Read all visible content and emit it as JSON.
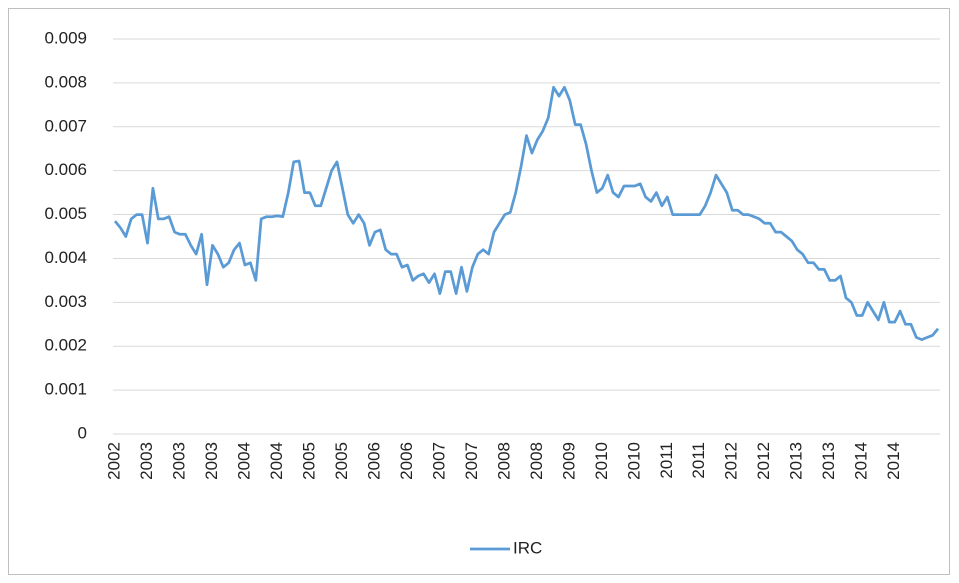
{
  "chart_data": {
    "type": "line",
    "categories": [
      "2002",
      null,
      null,
      null,
      null,
      null,
      "2003",
      null,
      null,
      null,
      null,
      null,
      "2003",
      null,
      null,
      null,
      null,
      null,
      "2003",
      null,
      null,
      null,
      null,
      null,
      "2004",
      null,
      null,
      null,
      null,
      null,
      "2004",
      null,
      null,
      null,
      null,
      null,
      "2005",
      null,
      null,
      null,
      null,
      null,
      "2005",
      null,
      null,
      null,
      null,
      null,
      "2006",
      null,
      null,
      null,
      null,
      null,
      "2006",
      null,
      null,
      null,
      null,
      null,
      "2007",
      null,
      null,
      null,
      null,
      null,
      "2007",
      null,
      null,
      null,
      null,
      null,
      "2008",
      null,
      null,
      null,
      null,
      null,
      "2008",
      null,
      null,
      null,
      null,
      null,
      "2009",
      null,
      null,
      null,
      null,
      null,
      "2010",
      null,
      null,
      null,
      null,
      null,
      "2010",
      null,
      null,
      null,
      null,
      null,
      "2011",
      null,
      null,
      null,
      null,
      null,
      "2011",
      null,
      null,
      null,
      null,
      null,
      "2012",
      null,
      null,
      null,
      null,
      null,
      "2012",
      null,
      null,
      null,
      null,
      null,
      "2013",
      null,
      null,
      null,
      null,
      null,
      "2013",
      null,
      null,
      null,
      null,
      null,
      "2014",
      null,
      null,
      null,
      null,
      null,
      "2014",
      null,
      null,
      null,
      null,
      null,
      null,
      null,
      null
    ],
    "series": [
      {
        "name": "IRC",
        "color": "#5b9bd5",
        "values": [
          0.00485,
          0.0047,
          0.0045,
          0.0049,
          0.005,
          0.005,
          0.00435,
          0.0056,
          0.0049,
          0.0049,
          0.00495,
          0.0046,
          0.00455,
          0.00455,
          0.0043,
          0.0041,
          0.00455,
          0.0034,
          0.0043,
          0.0041,
          0.0038,
          0.0039,
          0.0042,
          0.00435,
          0.00385,
          0.0039,
          0.0035,
          0.0049,
          0.00495,
          0.00495,
          0.00497,
          0.00495,
          0.0055,
          0.0062,
          0.00622,
          0.0055,
          0.0055,
          0.0052,
          0.0052,
          0.0056,
          0.006,
          0.0062,
          0.0056,
          0.005,
          0.0048,
          0.005,
          0.0048,
          0.0043,
          0.0046,
          0.00465,
          0.0042,
          0.0041,
          0.0041,
          0.0038,
          0.00385,
          0.0035,
          0.0036,
          0.00365,
          0.00345,
          0.00365,
          0.0032,
          0.0037,
          0.0037,
          0.0032,
          0.0038,
          0.00325,
          0.0038,
          0.0041,
          0.0042,
          0.0041,
          0.0046,
          0.0048,
          0.005,
          0.00505,
          0.0055,
          0.0061,
          0.0068,
          0.0064,
          0.0067,
          0.0069,
          0.0072,
          0.0079,
          0.0077,
          0.0079,
          0.0076,
          0.00705,
          0.00705,
          0.0066,
          0.006,
          0.0055,
          0.0056,
          0.0059,
          0.0055,
          0.0054,
          0.00565,
          0.00565,
          0.00565,
          0.0057,
          0.0054,
          0.0053,
          0.0055,
          0.0052,
          0.0054,
          0.005,
          0.005,
          0.005,
          0.005,
          0.005,
          0.005,
          0.0052,
          0.0055,
          0.0059,
          0.0057,
          0.0055,
          0.0051,
          0.0051,
          0.005,
          0.005,
          0.00495,
          0.0049,
          0.0048,
          0.0048,
          0.0046,
          0.0046,
          0.0045,
          0.0044,
          0.0042,
          0.0041,
          0.0039,
          0.0039,
          0.00375,
          0.00375,
          0.0035,
          0.0035,
          0.0036,
          0.0031,
          0.003,
          0.0027,
          0.0027,
          0.003,
          0.0028,
          0.0026,
          0.003,
          0.00255,
          0.00255,
          0.0028,
          0.0025,
          0.0025,
          0.0022,
          0.00215,
          0.0022,
          0.00225,
          0.0024
        ]
      }
    ],
    "ylim": [
      0,
      0.009
    ],
    "yticks": [
      0,
      0.001,
      0.002,
      0.003,
      0.004,
      0.005,
      0.006,
      0.007,
      0.008,
      0.009
    ],
    "grid": true,
    "legend": "bottom"
  }
}
